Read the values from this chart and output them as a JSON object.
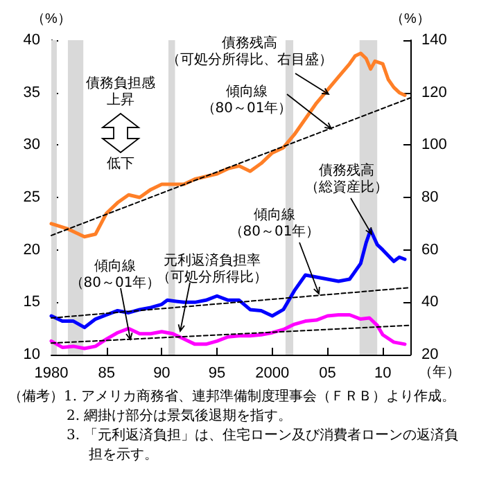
{
  "chart_data": {
    "type": "line",
    "xlabel": "（年）",
    "ylabel": "（%）",
    "y2label": "（%）",
    "xlim": [
      1980,
      2012.5
    ],
    "xticks": [
      1980,
      {
        "value": 1985,
        "label": "85"
      },
      {
        "value": 1990,
        "label": "90"
      },
      {
        "value": 1995,
        "label": "95"
      },
      2000,
      {
        "value": 2005,
        "label": "05"
      },
      {
        "value": 2010,
        "label": "10"
      }
    ],
    "ylim": [
      10,
      40
    ],
    "yticks": [
      10,
      15,
      20,
      25,
      30,
      35,
      40
    ],
    "y2lim": [
      20,
      140
    ],
    "y2ticks": [
      20,
      40,
      60,
      80,
      100,
      120,
      140
    ],
    "grid": false,
    "marker": "none",
    "bands": [
      {
        "axis": "x",
        "from": 1980.0,
        "to": 1980.5,
        "color": "#d9d9d9"
      },
      {
        "axis": "x",
        "from": 1981.5,
        "to": 1982.9,
        "color": "#d9d9d9"
      },
      {
        "axis": "x",
        "from": 1990.6,
        "to": 1991.2,
        "color": "#d9d9d9"
      },
      {
        "axis": "x",
        "from": 2001.2,
        "to": 2001.9,
        "color": "#d9d9d9"
      },
      {
        "axis": "x",
        "from": 2007.9,
        "to": 2009.5,
        "color": "#d9d9d9"
      }
    ],
    "series": [
      {
        "color": "#ff7f27",
        "axis": "y2",
        "x": [
          1980,
          1981.5,
          1983,
          1984,
          1985,
          1986,
          1987,
          1988,
          1989,
          1990,
          1991,
          1992,
          1993,
          1994,
          1995,
          1996,
          1997,
          1998,
          1999,
          2000,
          2001,
          2002,
          2003,
          2004,
          2005,
          2006,
          2007,
          2007.5,
          2008,
          2008.5,
          2008.9,
          2009.3,
          2010,
          2010.5,
          2011,
          2011.5,
          2012
        ],
        "values": [
          70,
          68,
          65,
          66,
          74,
          78,
          81,
          80,
          83,
          85,
          85,
          85,
          87,
          88,
          89,
          91,
          92,
          90,
          93,
          97,
          99,
          104,
          110,
          116,
          121,
          126,
          131,
          134,
          135,
          133,
          129,
          132,
          131,
          125,
          122,
          120,
          119
        ]
      },
      {
        "color": "#0000ff",
        "x": [
          1980,
          1981,
          1982,
          1983,
          1984,
          1985,
          1986,
          1987,
          1988,
          1989,
          1990,
          1990.5,
          1992,
          1993,
          1994,
          1995,
          1996,
          1997,
          1998,
          1999,
          2000,
          2001,
          2002,
          2003,
          2004,
          2005,
          2006,
          2007,
          2008,
          2008.5,
          2008.9,
          2009.5,
          2010,
          2011,
          2011.5,
          2012
        ],
        "values": [
          13.7,
          13.2,
          13.2,
          12.6,
          13.4,
          13.8,
          14.2,
          14.0,
          14.3,
          14.5,
          14.8,
          15.2,
          15.0,
          15.0,
          15.2,
          15.6,
          15.2,
          15.2,
          14.3,
          14.2,
          13.7,
          14.3,
          16.1,
          17.6,
          17.4,
          17.2,
          17.0,
          17.2,
          18.7,
          20.7,
          21.9,
          20.5,
          20.0,
          18.9,
          19.3,
          19.1
        ]
      },
      {
        "color": "#ff00ff",
        "x": [
          1980,
          1981,
          1982,
          1983,
          1984,
          1985,
          1986,
          1987,
          1988,
          1989,
          1990,
          1991,
          1992,
          1993,
          1994,
          1995,
          1996,
          1997,
          1998,
          1999,
          2000,
          2001,
          2002,
          2003,
          2004,
          2005,
          2006,
          2007,
          2008,
          2008.8,
          2009.5,
          2010,
          2011,
          2012
        ],
        "values": [
          11.3,
          10.7,
          10.8,
          10.6,
          10.8,
          11.5,
          12.1,
          12.5,
          12.0,
          12.0,
          12.2,
          12.0,
          11.5,
          11.0,
          11.0,
          11.3,
          11.7,
          11.8,
          11.8,
          11.9,
          12.1,
          12.4,
          12.9,
          13.2,
          13.3,
          13.7,
          13.8,
          13.8,
          13.4,
          13.5,
          12.8,
          11.9,
          11.2,
          11.0
        ]
      },
      {
        "type": "line",
        "color": "#000000",
        "line_style": "dashed",
        "axis": "y2",
        "x": [
          1980,
          2012.5
        ],
        "values": [
          65.5,
          118
        ]
      },
      {
        "type": "line",
        "color": "#000000",
        "line_style": "dashed",
        "x": [
          1980,
          2012.5
        ],
        "values": [
          13.5,
          16.4
        ]
      },
      {
        "type": "line",
        "color": "#000000",
        "line_style": "dashed",
        "x": [
          1980,
          2012.5
        ],
        "values": [
          11.1,
          12.8
        ]
      }
    ],
    "annotations": [
      "債務残高（可処分所得比、右目盛）",
      "傾向線（80～01年）",
      "債務負担感上昇",
      "低下",
      "債務残高（総資産比）",
      "傾向線（80～01年）",
      "元利返済負担率（可処分所得比）",
      "傾向線（80～01年）",
      "（備考）1. アメリカ商務省、連邦準備制度理事会（ＦＲＢ）より作成。",
      "2. 網掛け部分は景気後退期を指す。",
      "3. 「元利返済負担」は、住宅ローン及び消費者ローンの返済負担を示す。"
    ]
  }
}
